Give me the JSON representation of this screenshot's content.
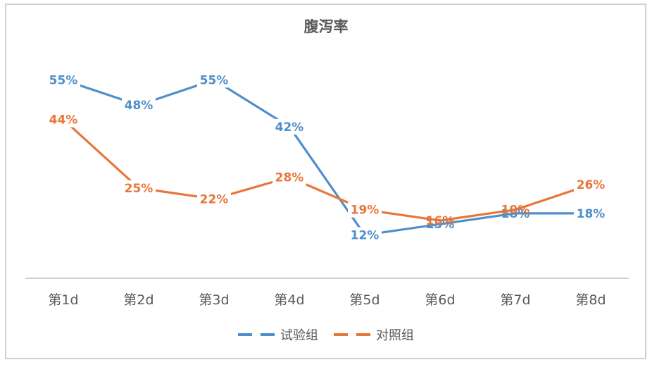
{
  "chart_data": {
    "type": "line",
    "title": "腹泻率",
    "xlabel": "",
    "ylabel": "",
    "categories": [
      "第1d",
      "第2d",
      "第3d",
      "第4d",
      "第5d",
      "第6d",
      "第7d",
      "第8d"
    ],
    "series": [
      {
        "name": "试验组",
        "color": "#4F8FCB",
        "values": [
          55,
          48,
          55,
          42,
          12,
          15,
          18,
          18
        ],
        "labels": [
          "55%",
          "48%",
          "55%",
          "42%",
          "12%",
          "15%",
          "18%",
          "18%"
        ]
      },
      {
        "name": "对照组",
        "color": "#E8763A",
        "values": [
          44,
          25,
          22,
          28,
          19,
          16,
          19,
          26
        ],
        "labels": [
          "44%",
          "25%",
          "22%",
          "28%",
          "19%",
          "16%",
          "19%",
          "26%"
        ]
      }
    ],
    "ylim": [
      0,
      60
    ],
    "grid": false,
    "legend_position": "bottom",
    "value_format": "percent"
  },
  "legend": {
    "items": [
      {
        "label": "试验组",
        "color": "#4F8FCB"
      },
      {
        "label": "对照组",
        "color": "#E8763A"
      }
    ]
  }
}
